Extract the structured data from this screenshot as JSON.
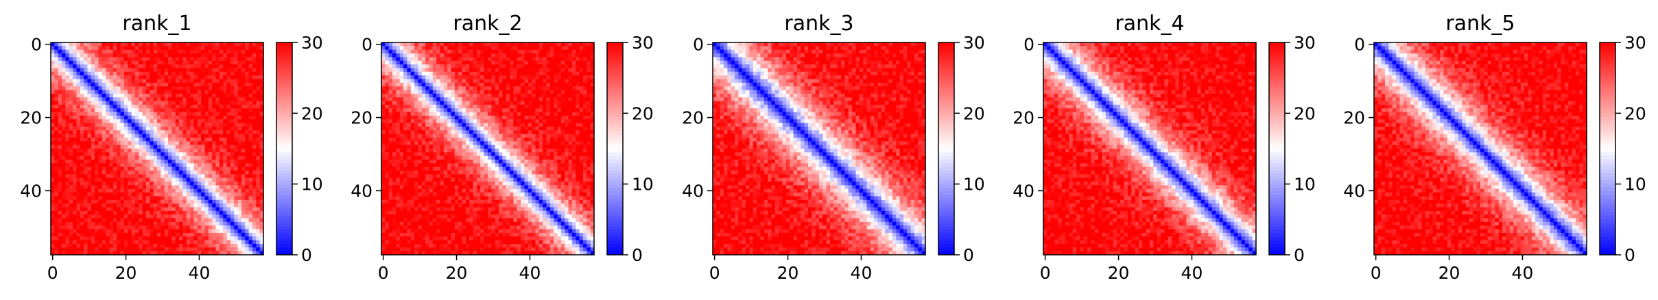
{
  "chart_data": [
    {
      "type": "heatmap",
      "title": "rank_1",
      "grid_size": 58,
      "band_width": 5.6,
      "x_ticks": [
        "0",
        "20",
        "40"
      ],
      "y_ticks": [
        "0",
        "20",
        "40"
      ],
      "colorbar": {
        "min": 0,
        "max": 30,
        "ticks": [
          "0",
          "10",
          "20",
          "30"
        ],
        "colormap": [
          "#0000ff",
          "#ffffff",
          "#ff0000"
        ]
      }
    },
    {
      "type": "heatmap",
      "title": "rank_2",
      "grid_size": 58,
      "band_width": 5.2,
      "x_ticks": [
        "0",
        "20",
        "40"
      ],
      "y_ticks": [
        "0",
        "20",
        "40"
      ],
      "colorbar": {
        "min": 0,
        "max": 30,
        "ticks": [
          "0",
          "10",
          "20",
          "30"
        ],
        "colormap": [
          "#0000ff",
          "#ffffff",
          "#ff0000"
        ]
      }
    },
    {
      "type": "heatmap",
      "title": "rank_3",
      "grid_size": 58,
      "band_width": 7.2,
      "x_ticks": [
        "0",
        "20",
        "40"
      ],
      "y_ticks": [
        "0",
        "20",
        "40"
      ],
      "colorbar": {
        "min": 0,
        "max": 30,
        "ticks": [
          "0",
          "10",
          "20",
          "30"
        ],
        "colormap": [
          "#0000ff",
          "#ffffff",
          "#ff0000"
        ]
      }
    },
    {
      "type": "heatmap",
      "title": "rank_4",
      "grid_size": 58,
      "band_width": 6.0,
      "x_ticks": [
        "0",
        "20",
        "40"
      ],
      "y_ticks": [
        "0",
        "20",
        "40"
      ],
      "colorbar": {
        "min": 0,
        "max": 30,
        "ticks": [
          "0",
          "10",
          "20",
          "30"
        ],
        "colormap": [
          "#0000ff",
          "#ffffff",
          "#ff0000"
        ]
      }
    },
    {
      "type": "heatmap",
      "title": "rank_5",
      "grid_size": 58,
      "band_width": 6.4,
      "x_ticks": [
        "0",
        "20",
        "40"
      ],
      "y_ticks": [
        "0",
        "20",
        "40"
      ],
      "colorbar": {
        "min": 0,
        "max": 30,
        "ticks": [
          "0",
          "10",
          "20",
          "30"
        ],
        "colormap": [
          "#0000ff",
          "#ffffff",
          "#ff0000"
        ]
      }
    }
  ]
}
